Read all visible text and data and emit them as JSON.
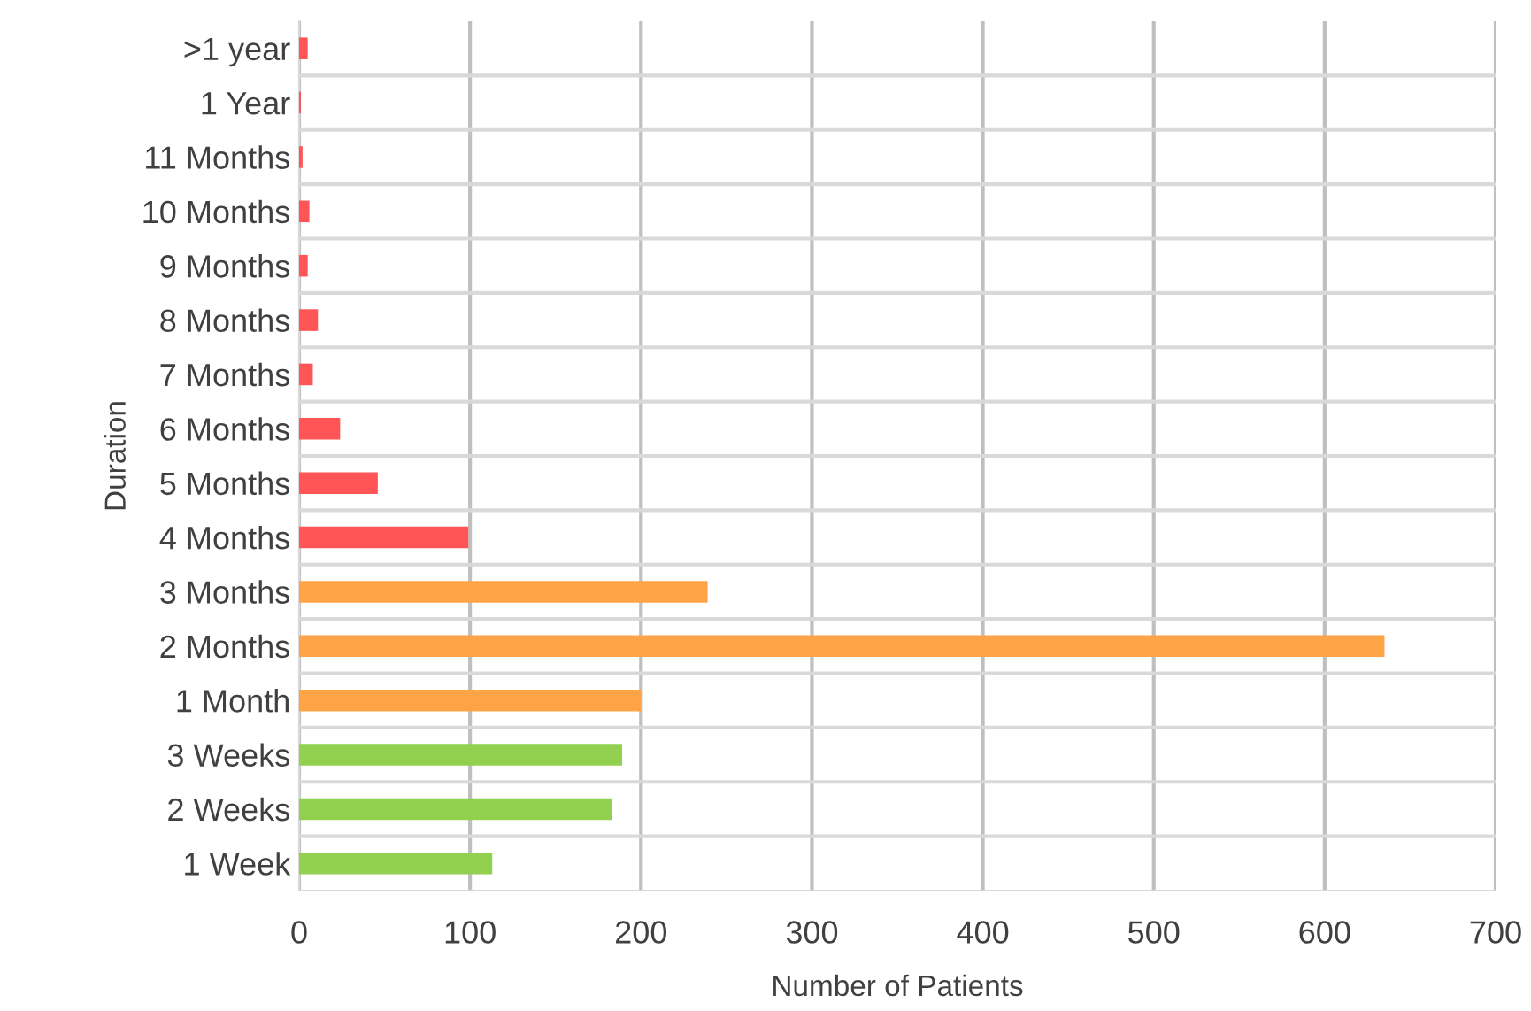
{
  "chart_data": {
    "type": "bar",
    "orientation": "horizontal",
    "xlabel": "Number of Patients",
    "ylabel": "Duration",
    "categories": [
      ">1 year",
      "1 Year",
      "11 Months",
      "10 Months",
      "9 Months",
      "8 Months",
      "7 Months",
      "6 Months",
      "5 Months",
      "4 Months",
      "3 Months",
      "2 Months",
      "1 Month",
      "3 Weeks",
      "2 Weeks",
      "1 Week"
    ],
    "values": [
      5,
      1,
      2,
      6,
      5,
      11,
      8,
      24,
      46,
      99,
      239,
      635,
      200,
      189,
      183,
      113
    ],
    "colors": [
      "#ff5557",
      "#ff5557",
      "#ff5557",
      "#ff5557",
      "#ff5557",
      "#ff5557",
      "#ff5557",
      "#ff5557",
      "#ff5557",
      "#ff5557",
      "#ffa347",
      "#ffa347",
      "#ffa347",
      "#92d050",
      "#92d050",
      "#92d050"
    ],
    "xlim": [
      0,
      700
    ],
    "xticks": [
      0,
      100,
      200,
      300,
      400,
      500,
      600,
      700
    ],
    "grid": true
  }
}
